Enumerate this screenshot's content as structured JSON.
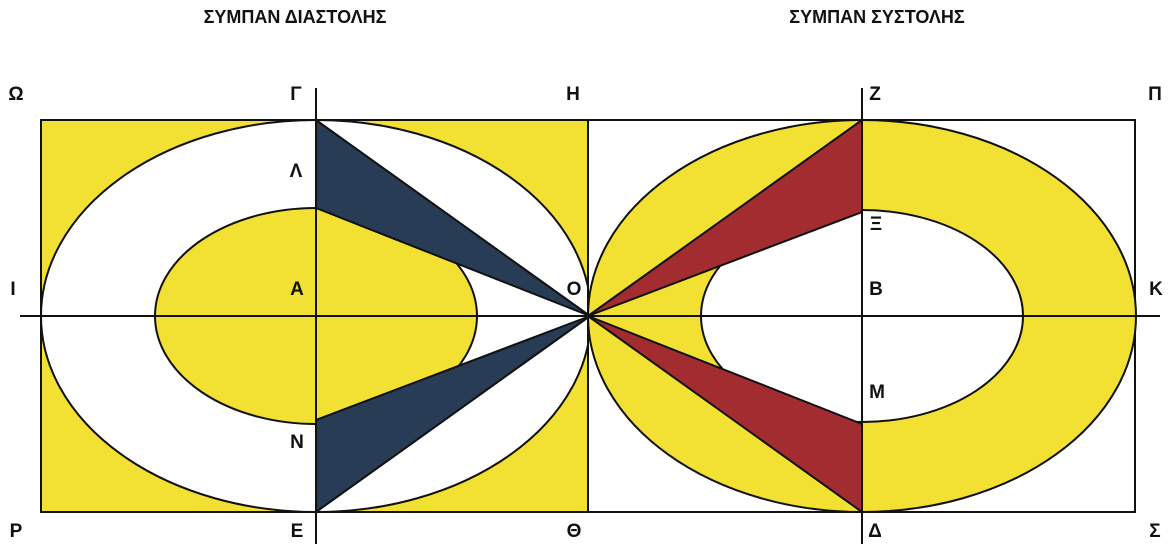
{
  "titles": [
    "ΣΥΜΠΑΝ ΔΙΑΣΤΟΛΗΣ",
    "ΣΥΜΠΑΝ ΣΥΣΤΟΛΗΣ"
  ],
  "labels": [
    "Ω",
    "Γ",
    "Η",
    "Ζ",
    "Π",
    "Λ",
    "Ξ",
    "Ι",
    "Α",
    "Ο",
    "Β",
    "Κ",
    "Μ",
    "Ν",
    "Ρ",
    "Ε",
    "Θ",
    "Δ",
    "Σ"
  ]
}
